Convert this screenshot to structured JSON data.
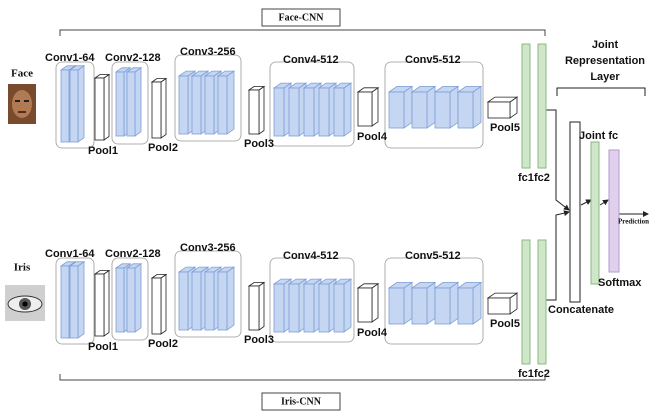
{
  "top": {
    "title": "Face-CNN",
    "input": "Face",
    "convs": [
      "Conv1-64",
      "Conv2-128",
      "Conv3-256",
      "Conv4-512",
      "Conv5-512"
    ],
    "pools": [
      "Pool1",
      "Pool2",
      "Pool3",
      "Pool4",
      "Pool5"
    ],
    "fc": [
      "fc1",
      "fc2"
    ]
  },
  "bottom": {
    "title": "Iris-CNN",
    "input": "Iris",
    "convs": [
      "Conv1-64",
      "Conv2-128",
      "Conv3-256",
      "Conv4-512",
      "Conv5-512"
    ],
    "pools": [
      "Pool1",
      "Pool2",
      "Pool3",
      "Pool4",
      "Pool5"
    ],
    "fc": [
      "fc1",
      "fc2"
    ]
  },
  "joint": {
    "title": [
      "Joint",
      "Representation",
      "Layer"
    ],
    "fc": "Joint fc",
    "softmax": "Softmax",
    "concat": "Concatenate",
    "output": "Prediction"
  }
}
